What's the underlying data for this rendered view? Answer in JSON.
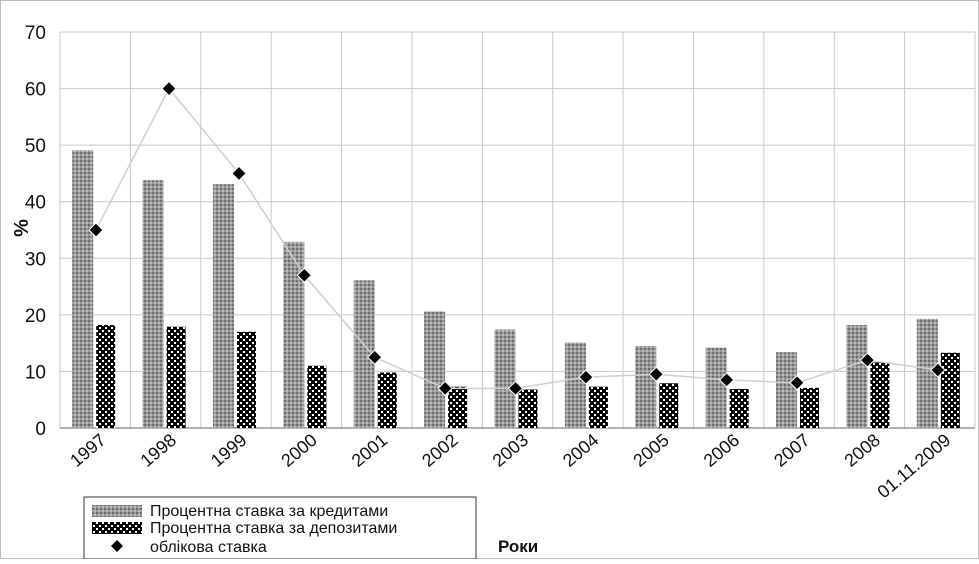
{
  "chart_data": {
    "type": "bar",
    "categories": [
      "1997",
      "1998",
      "1999",
      "2000",
      "2001",
      "2002",
      "2003",
      "2004",
      "2005",
      "2006",
      "2007",
      "2008",
      "01.11.2009"
    ],
    "series": [
      {
        "name": "Процентна ставка за кредитами",
        "kind": "bar",
        "pattern": "gray-dotted",
        "values": [
          49.1,
          43.8,
          43.1,
          32.9,
          26.1,
          20.6,
          17.4,
          15.1,
          14.5,
          14.2,
          13.4,
          18.2,
          19.3
        ]
      },
      {
        "name": "Процентна ставка за депозитами",
        "kind": "bar",
        "pattern": "black-checker",
        "values": [
          18.2,
          17.9,
          17.0,
          11.0,
          9.8,
          7.3,
          6.8,
          7.3,
          7.9,
          6.9,
          7.1,
          11.6,
          13.3
        ]
      },
      {
        "name": "облікова ставка",
        "kind": "line-markers",
        "values": [
          35,
          60,
          45,
          27,
          12.5,
          7,
          7,
          9,
          9.5,
          8.5,
          8,
          12,
          10.25
        ]
      }
    ],
    "yticks": [
      "0",
      "10",
      "20",
      "30",
      "40",
      "50",
      "60",
      "70"
    ],
    "ylim": [
      0,
      70
    ],
    "ylabel": "%",
    "xlabel": "Роки",
    "grid": true,
    "legend": "bottom-left",
    "colors": {
      "credit_bar": "#8a8a8a",
      "deposit_bar": "#000000",
      "marker": "#000000",
      "line": "#cfcfcf",
      "grid": "#c8c8c8"
    }
  }
}
